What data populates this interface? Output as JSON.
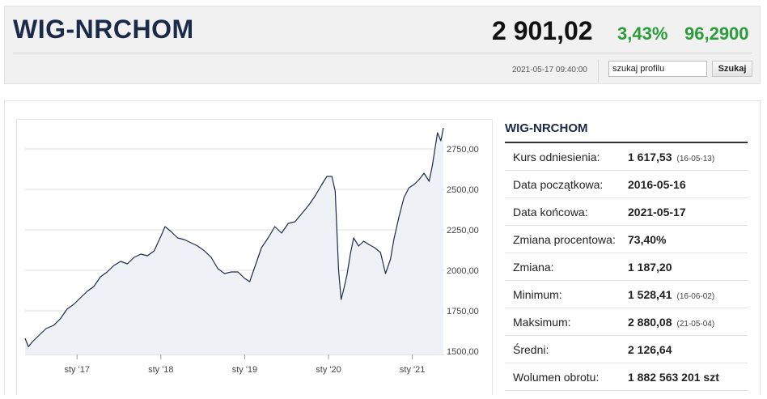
{
  "header": {
    "index_name": "WIG-NRCHOM",
    "value": "2 901,02",
    "change_pct": "3,43%",
    "change_abs": "96,2900",
    "timestamp": "2021-05-17 09:40:00",
    "search_value": "szukaj profilu",
    "search_button": "Szukaj"
  },
  "colors": {
    "positive": "#2a9d3a",
    "line": "#1e2b4a",
    "fill": "#eef2f6"
  },
  "side": {
    "title": "WIG-NRCHOM",
    "rows": [
      {
        "label": "Kurs odniesienia:",
        "value": "1 617,53",
        "note": "(16-05-13)"
      },
      {
        "label": "Data początkowa:",
        "value": "2016-05-16",
        "note": ""
      },
      {
        "label": "Data końcowa:",
        "value": "2021-05-17",
        "note": ""
      },
      {
        "label": "Zmiana procentowa:",
        "value": "73,40%",
        "note": ""
      },
      {
        "label": "Zmiana:",
        "value": "1 187,20",
        "note": ""
      },
      {
        "label": "Minimum:",
        "value": "1 528,41",
        "note": "(16-06-02)"
      },
      {
        "label": "Maksimum:",
        "value": "2 880,08",
        "note": "(21-05-04)"
      },
      {
        "label": "Średni:",
        "value": "2 126,64",
        "note": ""
      },
      {
        "label": "Wolumen obrotu:",
        "value": "1 882 563 201 szt",
        "note": ""
      }
    ]
  },
  "chart_data": {
    "type": "area",
    "x_tick_labels": [
      "sty '17",
      "sty '18",
      "sty '19",
      "sty '20",
      "sty '21"
    ],
    "x_tick_values": [
      2017.0,
      2018.0,
      2019.0,
      2020.0,
      2021.0
    ],
    "y_tick_labels": [
      "1500,00",
      "1750,00",
      "2000,00",
      "2250,00",
      "2500,00",
      "2750,00"
    ],
    "y_tick_values": [
      1500,
      1750,
      2000,
      2250,
      2500,
      2750
    ],
    "xlim": [
      2016.38,
      2021.38
    ],
    "ylim": [
      1480,
      2890
    ],
    "grid": true,
    "series": [
      {
        "x": [
          2016.38,
          2016.42,
          2016.47,
          2016.55,
          2016.63,
          2016.72,
          2016.8,
          2016.88,
          2016.96,
          2017.04,
          2017.12,
          2017.2,
          2017.28,
          2017.36,
          2017.44,
          2017.52,
          2017.6,
          2017.68,
          2017.76,
          2017.84,
          2017.92,
          2018.0,
          2018.05,
          2018.12,
          2018.2,
          2018.28,
          2018.36,
          2018.44,
          2018.52,
          2018.6,
          2018.68,
          2018.76,
          2018.84,
          2018.92,
          2019.0,
          2019.06,
          2019.12,
          2019.2,
          2019.28,
          2019.36,
          2019.44,
          2019.52,
          2019.6,
          2019.68,
          2019.76,
          2019.84,
          2019.92,
          2019.98,
          2020.04,
          2020.08,
          2020.12,
          2020.15,
          2020.18,
          2020.22,
          2020.26,
          2020.3,
          2020.36,
          2020.42,
          2020.48,
          2020.55,
          2020.62,
          2020.68,
          2020.74,
          2020.78,
          2020.84,
          2020.9,
          2020.96,
          2021.02,
          2021.08,
          2021.14,
          2021.2,
          2021.24,
          2021.27,
          2021.3,
          2021.34,
          2021.37
        ],
        "y": [
          1580,
          1528,
          1560,
          1600,
          1640,
          1660,
          1700,
          1760,
          1790,
          1830,
          1870,
          1900,
          1960,
          1990,
          2030,
          2055,
          2040,
          2080,
          2100,
          2090,
          2120,
          2210,
          2270,
          2240,
          2200,
          2190,
          2170,
          2150,
          2120,
          2080,
          2010,
          1980,
          1990,
          1990,
          1950,
          1930,
          2020,
          2140,
          2200,
          2270,
          2230,
          2290,
          2300,
          2350,
          2400,
          2460,
          2530,
          2580,
          2580,
          2490,
          2000,
          1820,
          1880,
          1970,
          2100,
          2200,
          2150,
          2180,
          2160,
          2140,
          2110,
          1980,
          2070,
          2190,
          2330,
          2450,
          2510,
          2530,
          2560,
          2600,
          2550,
          2650,
          2750,
          2850,
          2800,
          2880
        ]
      }
    ]
  }
}
